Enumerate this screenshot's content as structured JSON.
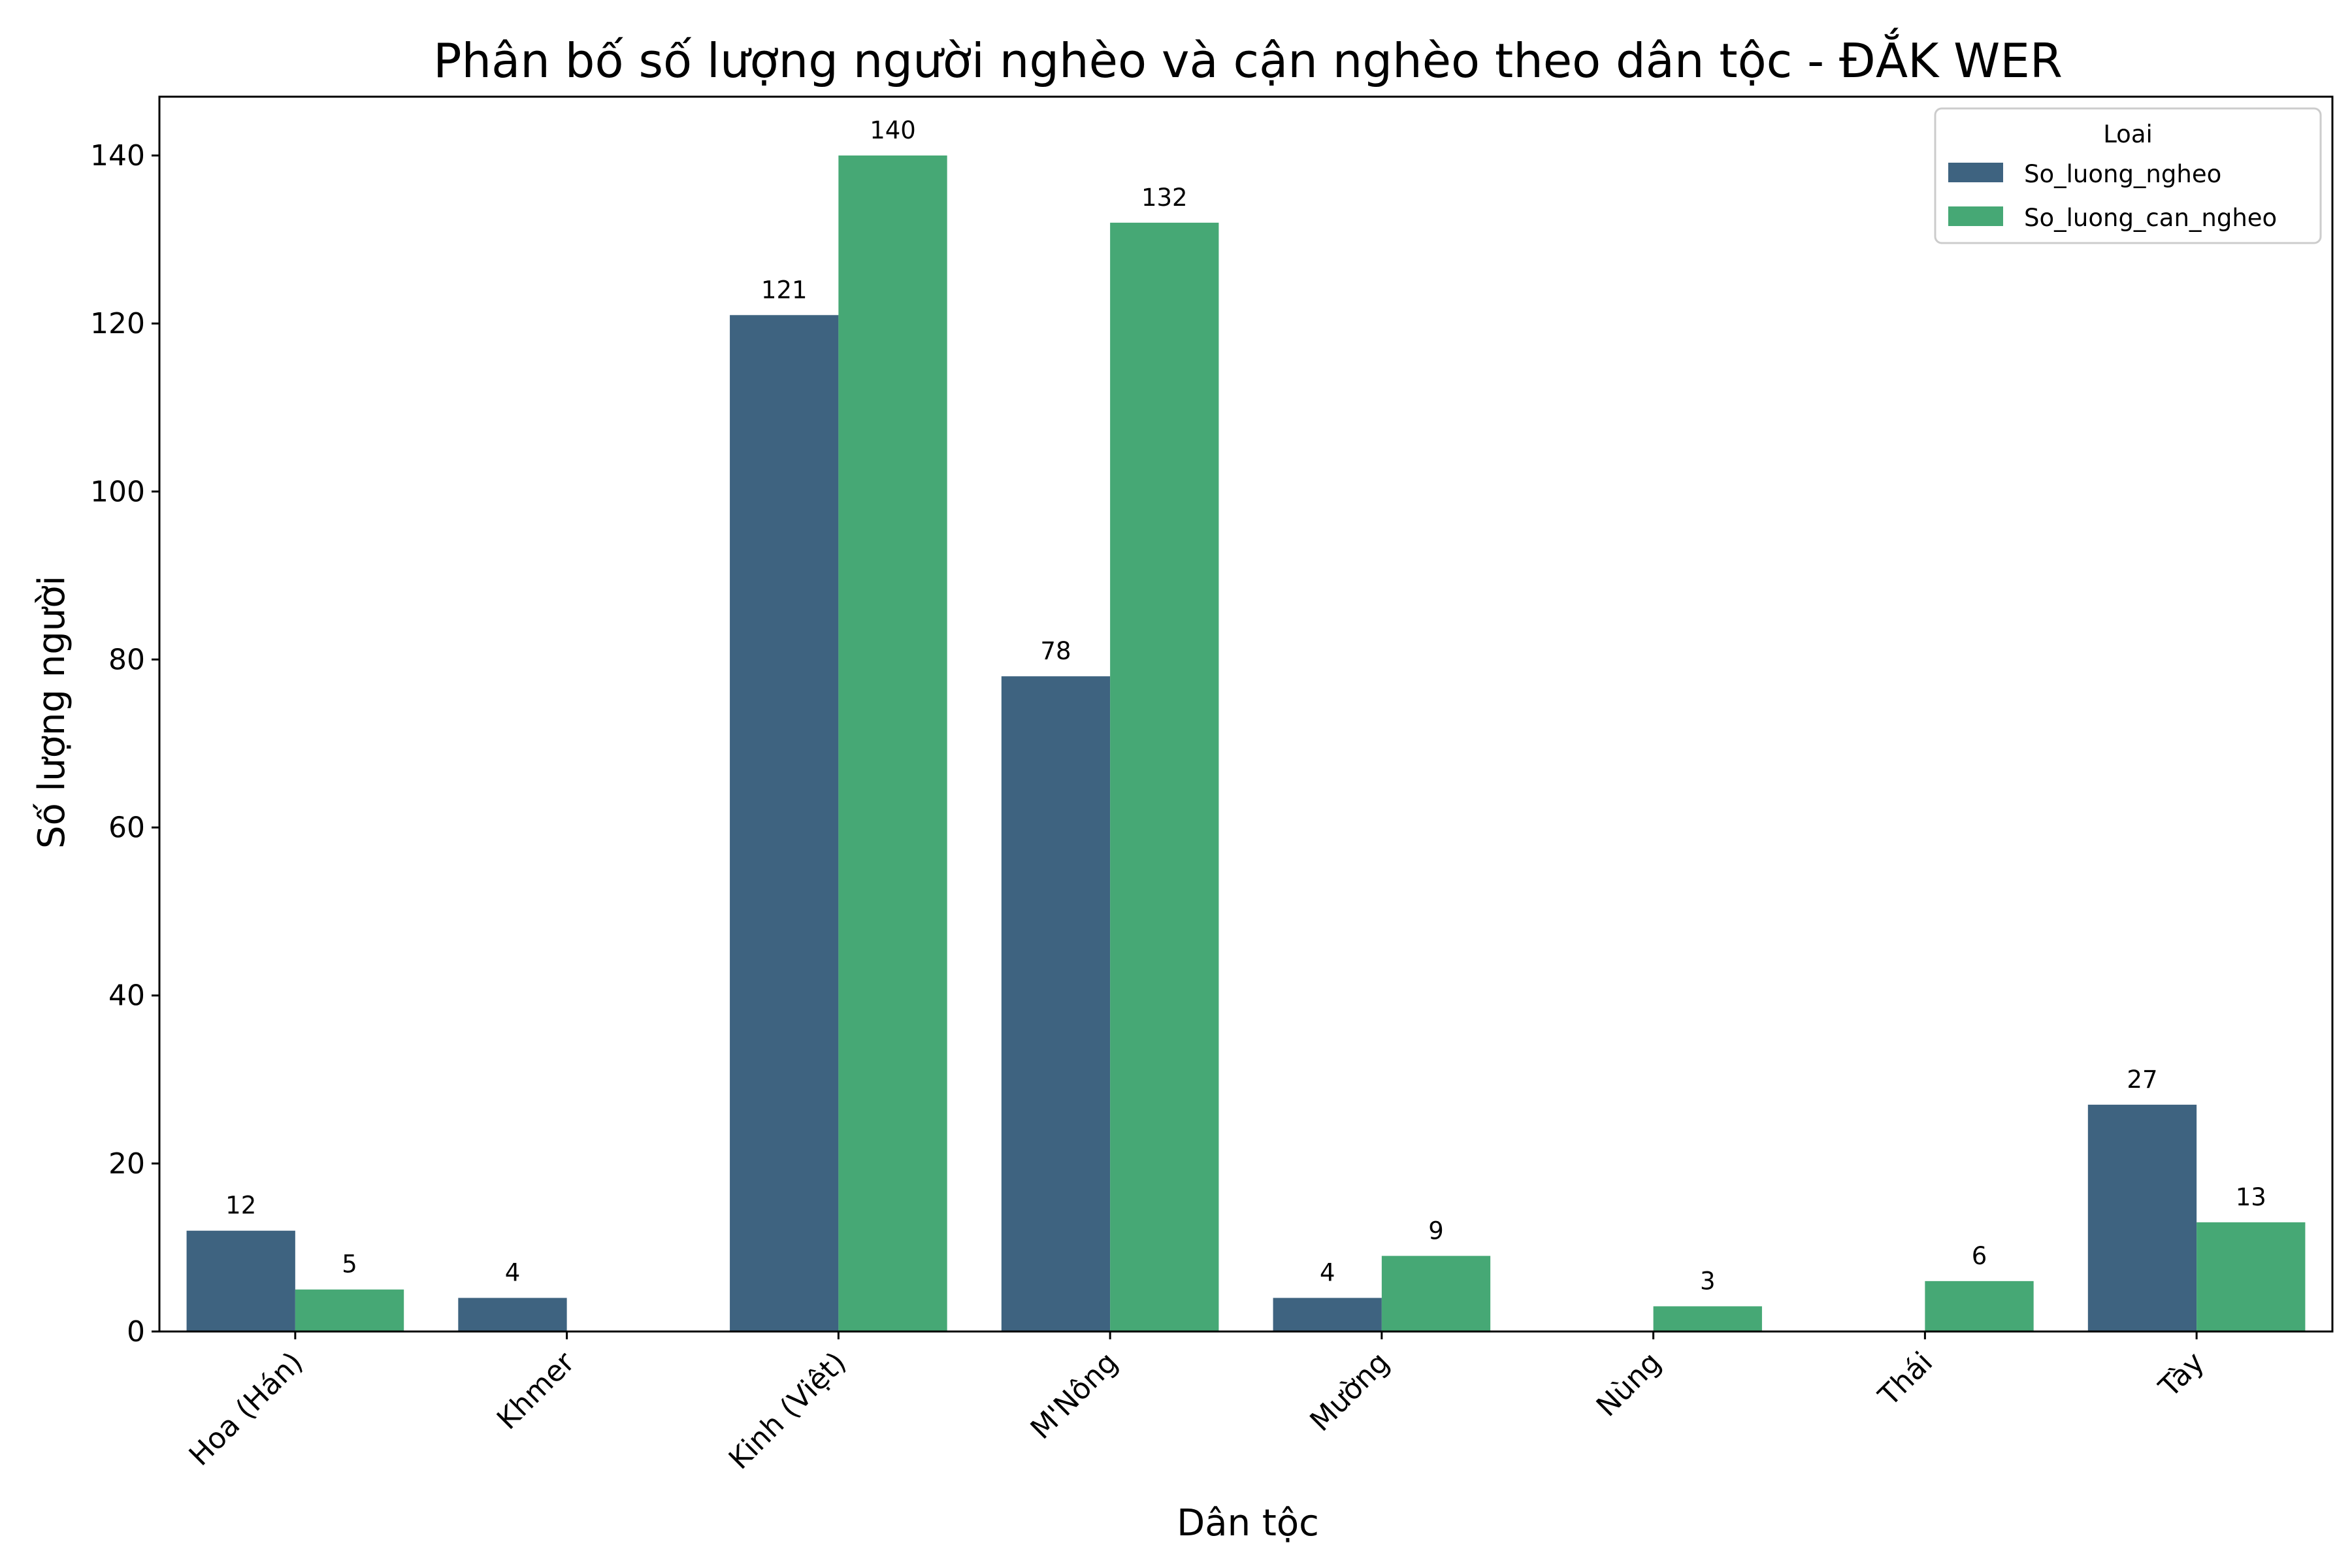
{
  "chart_data": {
    "type": "bar",
    "title": "Phân bố số lượng người nghèo và cận nghèo theo dân tộc - ĐẮK WER",
    "xlabel": "Dân tộc",
    "ylabel": "Số lượng người",
    "categories": [
      "Hoa (Hán)",
      "Khmer",
      "Kinh (Việt)",
      "M'Nông",
      "Mường",
      "Nùng",
      "Thái",
      "Tày"
    ],
    "series": [
      {
        "name": "So_luong_ngheo",
        "color": "#3e6380",
        "values": [
          12,
          4,
          121,
          78,
          4,
          null,
          null,
          27
        ]
      },
      {
        "name": "So_luong_can_ngheo",
        "color": "#46a875",
        "values": [
          5,
          null,
          140,
          132,
          9,
          3,
          6,
          13
        ]
      }
    ],
    "ylim": [
      0,
      147
    ],
    "yticks": [
      0,
      20,
      40,
      60,
      80,
      100,
      120,
      140
    ],
    "xtick_rotation": 45,
    "grid": false,
    "legend": {
      "title": "Loai",
      "position": "top-right"
    }
  }
}
